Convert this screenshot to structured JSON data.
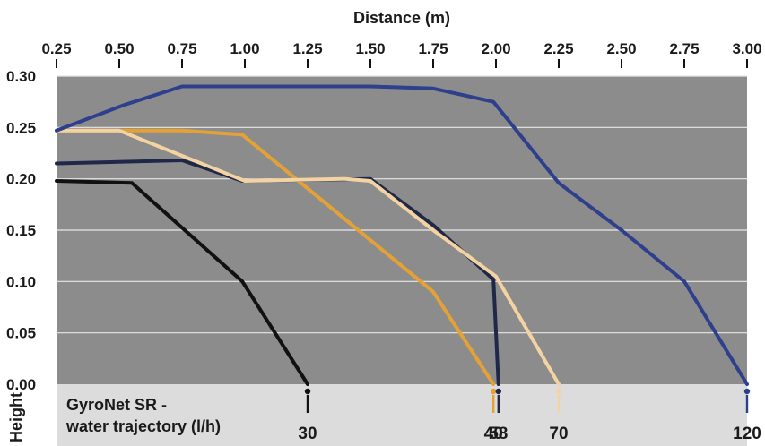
{
  "chart_data": {
    "type": "line",
    "xlabel": "Distance (m)",
    "ylabel": "Height",
    "xlim": [
      0.25,
      3.0
    ],
    "ylim": [
      0.0,
      0.3
    ],
    "x_ticks": [
      "0.25",
      "0.50",
      "0.75",
      "1.00",
      "1.25",
      "1.50",
      "1.75",
      "2.00",
      "2.25",
      "2.50",
      "2.75",
      "3.00"
    ],
    "y_ticks": [
      "0.00",
      "0.05",
      "0.10",
      "0.15",
      "0.20",
      "0.25",
      "0.30"
    ],
    "grid": "horizontal",
    "legend_title_line1": "GyroNet SR -",
    "legend_title_line2": "water trajectory (l/h)",
    "series": [
      {
        "name": "30",
        "color": "#111111",
        "x": [
          0.25,
          0.55,
          0.99,
          1.25
        ],
        "y": [
          0.198,
          0.196,
          0.1,
          0.0
        ]
      },
      {
        "name": "40",
        "color": "#e4a236",
        "x": [
          0.25,
          0.75,
          0.99,
          1.75,
          1.99
        ],
        "y": [
          0.247,
          0.247,
          0.243,
          0.09,
          0.0
        ]
      },
      {
        "name": "58",
        "color": "#1f2849",
        "x": [
          0.25,
          0.75,
          0.99,
          1.5,
          1.75,
          1.99,
          2.01
        ],
        "y": [
          0.215,
          0.218,
          0.198,
          0.2,
          0.155,
          0.102,
          0.0
        ]
      },
      {
        "name": "70",
        "color": "#f3d3a2",
        "x": [
          0.25,
          0.5,
          1.0,
          1.4,
          1.5,
          1.75,
          2.0,
          2.25
        ],
        "y": [
          0.247,
          0.247,
          0.198,
          0.2,
          0.198,
          0.15,
          0.105,
          0.0
        ]
      },
      {
        "name": "120",
        "color": "#2e3f8c",
        "x": [
          0.25,
          0.52,
          0.75,
          1.5,
          1.75,
          1.99,
          2.25,
          2.5,
          2.75,
          3.0
        ],
        "y": [
          0.247,
          0.272,
          0.29,
          0.29,
          0.288,
          0.275,
          0.196,
          0.15,
          0.1,
          0.0
        ]
      }
    ]
  }
}
